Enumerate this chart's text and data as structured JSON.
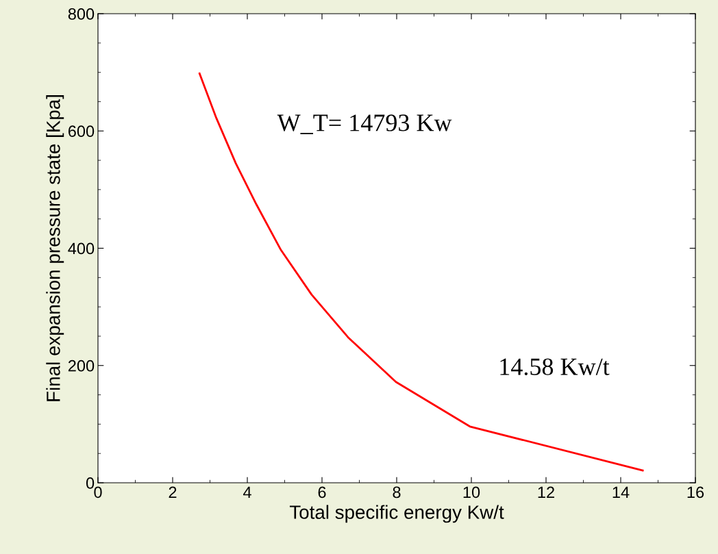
{
  "chart_data": {
    "type": "line",
    "xlabel": "Total specific energy Kw/t",
    "ylabel": "Final expansion pressure state [Kpa]",
    "annotations": [
      "W_T= 14793 Kw",
      "14.58 Kw/t"
    ],
    "x": [
      2.72,
      3.17,
      3.69,
      4.24,
      4.9,
      5.72,
      6.7,
      7.98,
      9.96,
      14.59
    ],
    "series": [
      {
        "color": "#ff0000",
        "values": [
          698,
          622,
          545,
          475,
          397,
          321,
          248,
          172,
          96,
          21
        ]
      }
    ],
    "xlim": [
      0,
      16
    ],
    "xticks": [
      0,
      2,
      4,
      6,
      8,
      10,
      12,
      14,
      16
    ],
    "ylim": [
      0,
      800
    ],
    "yticks": [
      0,
      200,
      400,
      600,
      800
    ],
    "grid": false,
    "legend": false,
    "marker": "none",
    "line_style": "solid"
  }
}
